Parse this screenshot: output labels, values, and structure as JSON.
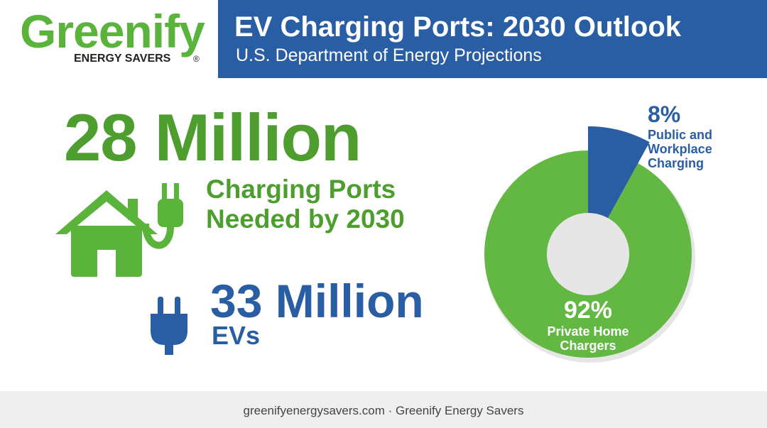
{
  "logo": {
    "name": "Greenify",
    "tagline": "ENERGY SAVERS",
    "mark": "®"
  },
  "header": {
    "title": "EV Charging Ports: 2030 Outlook",
    "subtitle": "U.S. Department of Energy Projections"
  },
  "stats": {
    "ports": {
      "value": "28 Million",
      "label": "Charging Ports Needed by 2030"
    },
    "evs": {
      "value": "33 Million",
      "label": "EVs"
    }
  },
  "chart_data": {
    "type": "donut",
    "categories": [
      "Public and Workplace Charging",
      "Private Home Chargers"
    ],
    "values": [
      8,
      92
    ],
    "value_labels": [
      "8%",
      "92%"
    ],
    "colors": [
      "#2a5ea4",
      "#62b843"
    ]
  },
  "footer": {
    "text": "greenifyenergysavers.com · Greenify Energy Savers"
  }
}
